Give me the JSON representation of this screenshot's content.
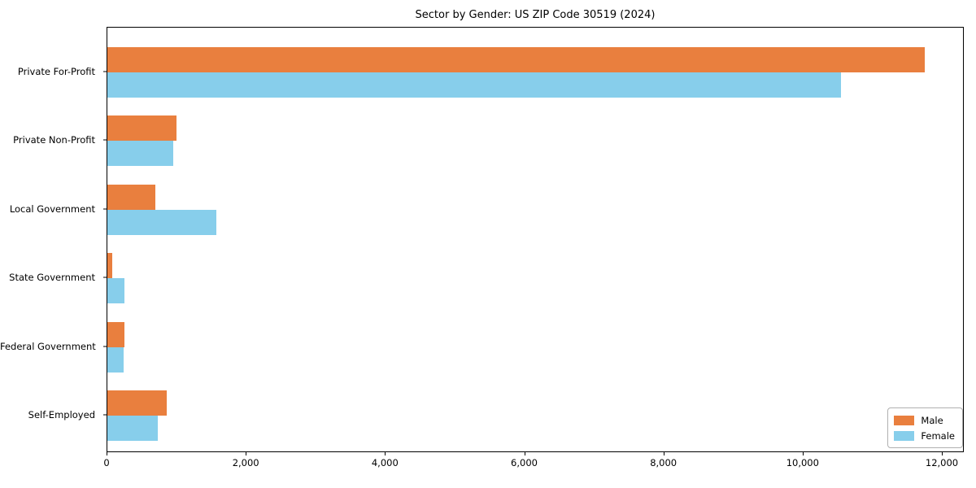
{
  "chart_data": {
    "type": "bar",
    "orientation": "horizontal",
    "title": "Sector by Gender: US ZIP Code 30519 (2024)",
    "categories": [
      "Private For-Profit",
      "Private Non-Profit",
      "Local Government",
      "State Government",
      "Federal Government",
      "Self-Employed"
    ],
    "series": [
      {
        "name": "Male",
        "color": "#e97f3e",
        "values": [
          11740,
          990,
          690,
          70,
          240,
          850
        ]
      },
      {
        "name": "Female",
        "color": "#87ceeb",
        "values": [
          10540,
          950,
          1570,
          250,
          230,
          720
        ]
      }
    ],
    "xlim": [
      0,
      12315
    ],
    "x_ticks": [
      0,
      2000,
      4000,
      6000,
      8000,
      10000,
      12000
    ],
    "x_tick_labels": [
      "0",
      "2,000",
      "4,000",
      "6,000",
      "8,000",
      "10,000",
      "12,000"
    ],
    "ylabel": "",
    "xlabel": "",
    "grid": false,
    "legend": {
      "position": "lower right",
      "entries": [
        "Male",
        "Female"
      ]
    }
  }
}
